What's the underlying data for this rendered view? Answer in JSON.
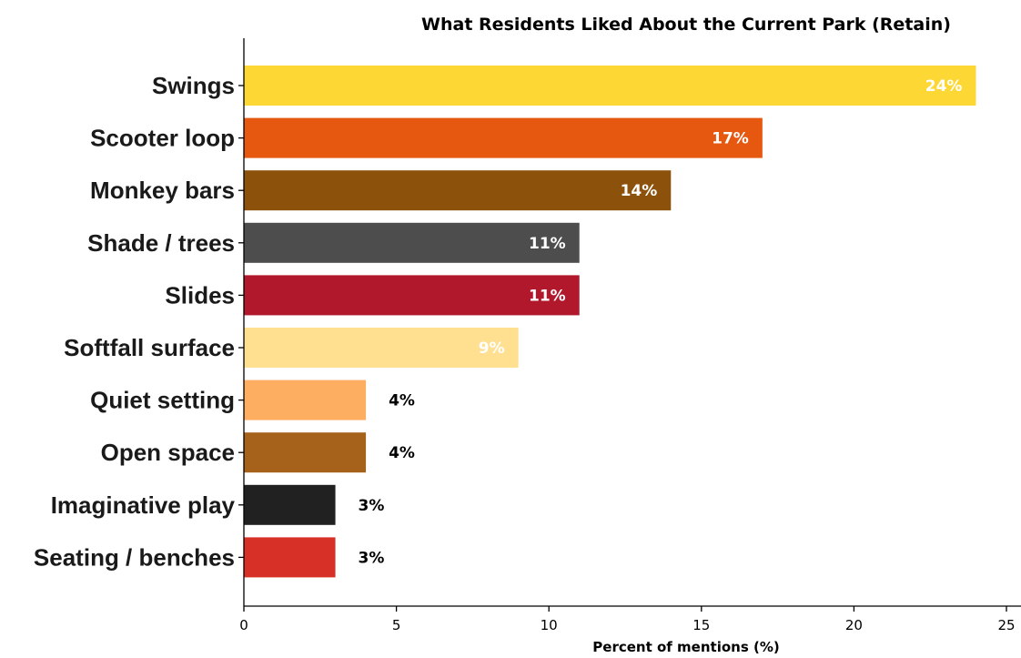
{
  "chart_data": {
    "type": "bar",
    "orientation": "horizontal",
    "title": "What Residents Liked About the Current Park (Retain)",
    "xlabel": "Percent of mentions (%)",
    "ylabel": "",
    "xlim": [
      0,
      25
    ],
    "xticks": [
      0,
      5,
      10,
      15,
      20,
      25
    ],
    "grid": false,
    "categories": [
      "Swings",
      "Scooter loop",
      "Monkey bars",
      "Shade / trees",
      "Slides",
      "Softfall surface",
      "Quiet setting",
      "Open space",
      "Imaginative play",
      "Seating  / benches"
    ],
    "values": [
      24,
      17,
      14,
      11,
      11,
      9,
      4,
      4,
      3,
      3
    ],
    "value_labels": [
      "24%",
      "17%",
      "14%",
      "11%",
      "11%",
      "9%",
      "4%",
      "4%",
      "3%",
      "3%"
    ],
    "colors": [
      "#fdd835",
      "#e65710",
      "#8c510a",
      "#4d4d4d",
      "#b2182b",
      "#fee090",
      "#fdae61",
      "#a6611a",
      "#212121",
      "#d73027"
    ],
    "label_colors": [
      "#ffffff",
      "#ffffff",
      "#ffffff",
      "#ffffff",
      "#ffffff",
      "#ffffff",
      "#000000",
      "#000000",
      "#000000",
      "#000000"
    ]
  }
}
